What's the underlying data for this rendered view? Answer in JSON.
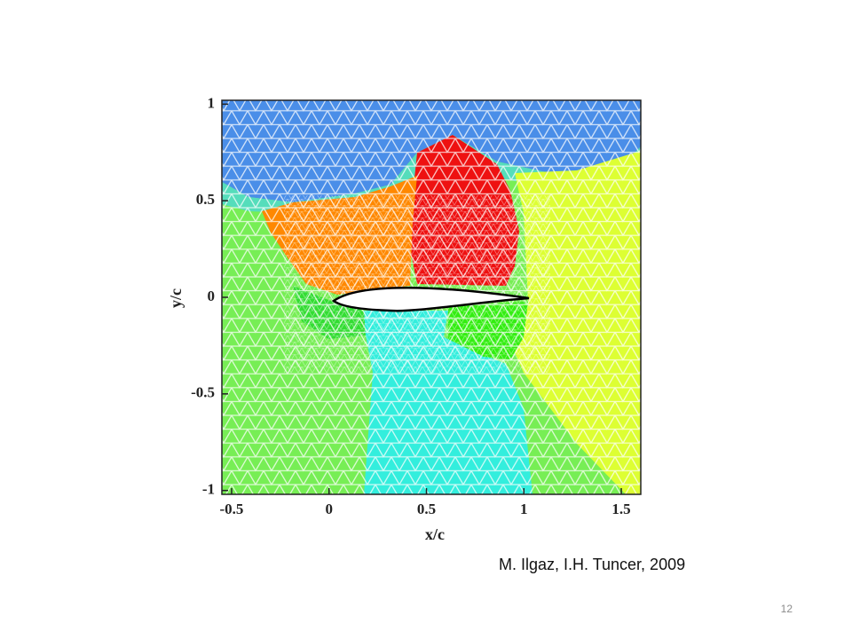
{
  "chart_data": {
    "type": "mesh",
    "xlabel": "x/c",
    "ylabel": "y/c",
    "xlim": [
      -0.55,
      1.6
    ],
    "ylim": [
      -1.02,
      1.02
    ],
    "xticks": [
      -0.5,
      0,
      0.5,
      1,
      1.5
    ],
    "yticks": [
      -1,
      -0.5,
      0,
      0.5,
      1
    ]
  },
  "caption": "M. Ilgaz, I.H. Tuncer, 2009",
  "page_number": "12"
}
